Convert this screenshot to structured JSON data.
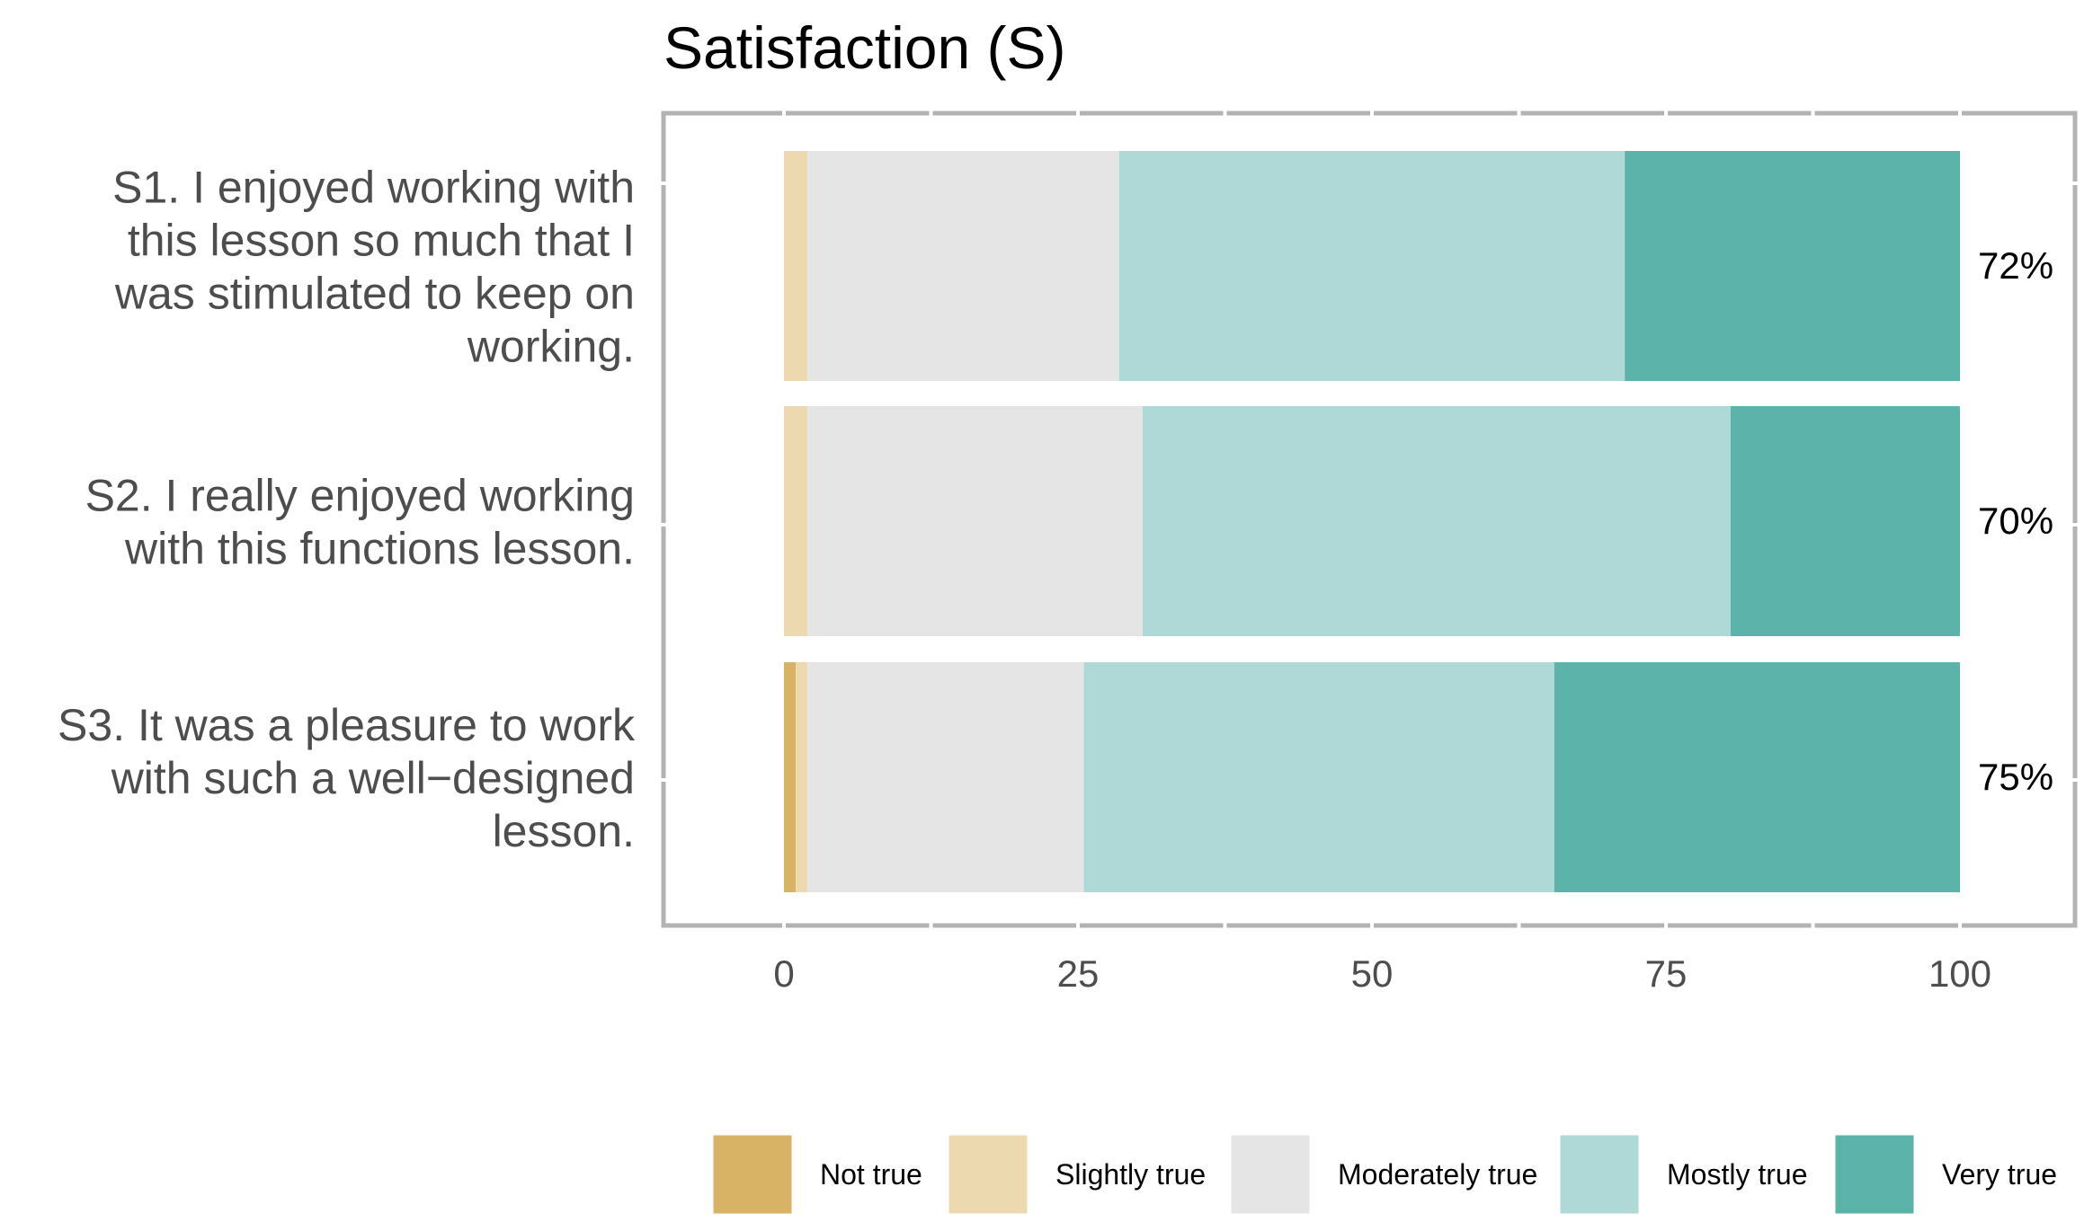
{
  "chart_data": {
    "type": "bar",
    "orientation": "horizontal",
    "stacked": true,
    "title": "Satisfaction (S)",
    "xlabel": "",
    "ylabel": "",
    "xlim": [
      -10,
      110
    ],
    "x_ticks": [
      "0",
      "25",
      "50",
      "75",
      "100"
    ],
    "x_tick_values": [
      0,
      25,
      50,
      75,
      100
    ],
    "grid": false,
    "legend_position": "bottom",
    "categories": [
      [
        "S1. I enjoyed working with",
        "this lesson so much that I",
        "was stimulated to keep on",
        "working."
      ],
      [
        "S2. I really enjoyed working",
        "with this functions lesson."
      ],
      [
        "S3. It was a pleasure to work",
        "with such a well−designed",
        "lesson."
      ]
    ],
    "series": [
      {
        "name": "Not true",
        "color": "#d9b365",
        "values": [
          0,
          0,
          1
        ]
      },
      {
        "name": "Slightly true",
        "color": "#ecd9b0",
        "values": [
          2,
          2,
          1
        ]
      },
      {
        "name": "Moderately true",
        "color": "#e5e5e5",
        "values": [
          26.5,
          28.5,
          23.5
        ]
      },
      {
        "name": "Mostly true",
        "color": "#aed9d6",
        "values": [
          43,
          50,
          40
        ]
      },
      {
        "name": "Very true",
        "color": "#5bb3a9",
        "values": [
          28.5,
          19.5,
          34.5
        ]
      }
    ],
    "right_labels": [
      "72%",
      "70%",
      "75%"
    ]
  }
}
